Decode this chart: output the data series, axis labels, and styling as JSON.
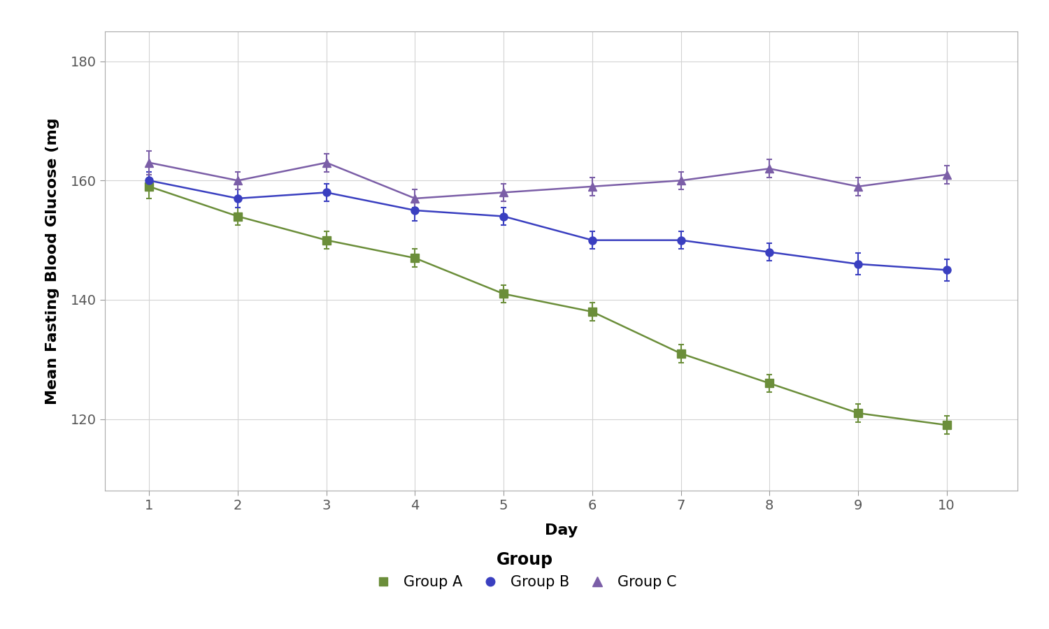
{
  "days": [
    1,
    2,
    3,
    4,
    5,
    6,
    7,
    8,
    9,
    10
  ],
  "group_a": {
    "mean": [
      159,
      154,
      150,
      147,
      141,
      138,
      131,
      126,
      121,
      119
    ],
    "se": [
      2.0,
      1.5,
      1.5,
      1.5,
      1.5,
      1.5,
      1.5,
      1.5,
      1.5,
      1.5
    ],
    "color": "#6B8E3A",
    "label": "Group A",
    "marker": "s"
  },
  "group_b": {
    "mean": [
      160,
      157,
      158,
      155,
      154,
      150,
      150,
      148,
      146,
      145
    ],
    "se": [
      1.5,
      1.5,
      1.5,
      1.8,
      1.5,
      1.5,
      1.5,
      1.5,
      1.8,
      1.8
    ],
    "color": "#3A3FC0",
    "label": "Group B",
    "marker": "o"
  },
  "group_c": {
    "mean": [
      163,
      160,
      163,
      157,
      158,
      159,
      160,
      162,
      159,
      161
    ],
    "se": [
      2.0,
      1.5,
      1.5,
      1.5,
      1.5,
      1.5,
      1.5,
      1.5,
      1.5,
      1.5
    ],
    "color": "#7B5EA7",
    "label": "Group C",
    "marker": "^"
  },
  "xlabel": "Day",
  "ylabel": "Mean Fasting Blood Glucose (mg",
  "xlim": [
    0.5,
    10.8
  ],
  "ylim": [
    108,
    185
  ],
  "yticks": [
    120,
    140,
    160,
    180
  ],
  "xticks": [
    1,
    2,
    3,
    4,
    5,
    6,
    7,
    8,
    9,
    10
  ],
  "legend_title": "Group",
  "background_color": "#FFFFFF",
  "panel_background": "#FFFFFF",
  "grid_color": "#D3D3D3",
  "label_fontsize": 16,
  "tick_fontsize": 14,
  "legend_fontsize": 15
}
